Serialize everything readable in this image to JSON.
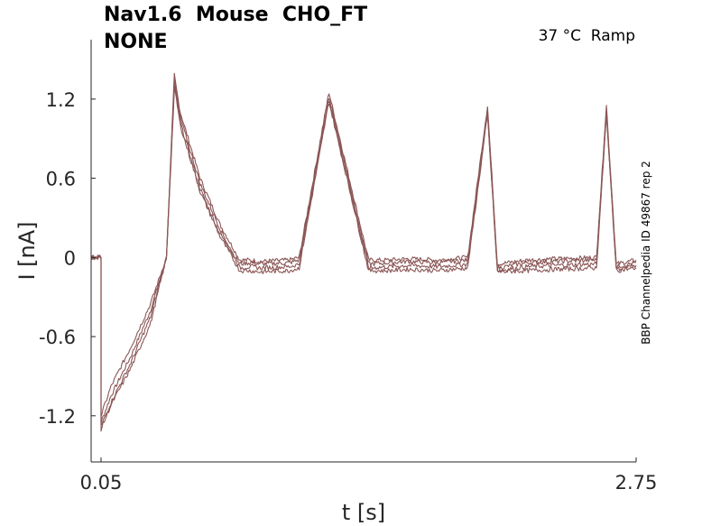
{
  "title": {
    "line1": "Nav1.6  Mouse  CHO_FT",
    "line2": "NONE"
  },
  "condition": "37 °C  Ramp",
  "side_label": "BBP Channelpedia ID 49867 rep 2",
  "colors": {
    "trace": "#8b5656",
    "axis": "#262626"
  },
  "chart_data": {
    "type": "line",
    "xlabel": "t [s]",
    "ylabel": "I [nA]",
    "x_ticks": [
      "0.05",
      "2.75"
    ],
    "y_ticks": [
      "1.2",
      "0.6",
      "0",
      "-0.6",
      "-1.2"
    ],
    "xlim": [
      0.0,
      2.75
    ],
    "ylim": [
      -1.55,
      1.65
    ],
    "grid": false,
    "series_count": 4,
    "series": [
      {
        "x": [
          0.0,
          0.05,
          0.05,
          0.1,
          0.2,
          0.3,
          0.38,
          0.42,
          0.43,
          0.45,
          0.55,
          0.65,
          0.75,
          0.8,
          0.85,
          1.0,
          1.05,
          1.2,
          1.4,
          1.5,
          1.6,
          1.75,
          1.9,
          2.0,
          2.05,
          2.2,
          2.35,
          2.55,
          2.6,
          2.65,
          2.75
        ],
        "y": [
          0.0,
          0.0,
          -1.25,
          -1.05,
          -0.75,
          -0.4,
          0.0,
          1.38,
          1.28,
          1.1,
          0.6,
          0.25,
          -0.02,
          -0.02,
          -0.03,
          -0.02,
          0.0,
          1.25,
          -0.02,
          -0.02,
          -0.01,
          -0.02,
          0.0,
          1.15,
          -0.05,
          -0.02,
          -0.01,
          0.0,
          1.15,
          -0.05,
          -0.02
        ]
      },
      {
        "x": [
          0.0,
          0.05,
          0.05,
          0.1,
          0.2,
          0.3,
          0.38,
          0.42,
          0.43,
          0.45,
          0.55,
          0.65,
          0.75,
          0.8,
          0.85,
          1.0,
          1.05,
          1.2,
          1.4,
          1.5,
          1.6,
          1.75,
          1.9,
          2.0,
          2.05,
          2.2,
          2.35,
          2.55,
          2.6,
          2.65,
          2.75
        ],
        "y": [
          0.0,
          0.0,
          -1.2,
          -0.98,
          -0.68,
          -0.35,
          0.0,
          1.3,
          1.22,
          1.02,
          0.52,
          0.18,
          -0.05,
          -0.04,
          -0.05,
          -0.04,
          -0.02,
          1.22,
          -0.05,
          -0.04,
          -0.03,
          -0.04,
          -0.02,
          1.12,
          -0.08,
          -0.04,
          -0.03,
          -0.02,
          1.12,
          -0.07,
          -0.04
        ]
      },
      {
        "x": [
          0.0,
          0.05,
          0.05,
          0.1,
          0.2,
          0.3,
          0.38,
          0.42,
          0.43,
          0.45,
          0.55,
          0.65,
          0.75,
          0.8,
          0.85,
          1.0,
          1.05,
          1.2,
          1.4,
          1.5,
          1.6,
          1.75,
          1.9,
          2.0,
          2.05,
          2.2,
          2.35,
          2.55,
          2.6,
          2.65,
          2.75
        ],
        "y": [
          0.0,
          0.0,
          -1.28,
          -1.1,
          -0.8,
          -0.45,
          0.0,
          1.34,
          1.25,
          1.06,
          0.56,
          0.22,
          -0.08,
          -0.07,
          -0.08,
          -0.07,
          -0.05,
          1.2,
          -0.08,
          -0.07,
          -0.06,
          -0.07,
          -0.05,
          1.1,
          -0.1,
          -0.07,
          -0.06,
          -0.05,
          1.1,
          -0.09,
          -0.06
        ]
      },
      {
        "x": [
          0.0,
          0.05,
          0.05,
          0.1,
          0.2,
          0.3,
          0.38,
          0.42,
          0.43,
          0.45,
          0.55,
          0.65,
          0.75,
          0.8,
          0.85,
          1.0,
          1.05,
          1.2,
          1.4,
          1.5,
          1.6,
          1.75,
          1.9,
          2.0,
          2.05,
          2.2,
          2.35,
          2.55,
          2.6,
          2.65,
          2.75
        ],
        "y": [
          0.0,
          0.0,
          -1.3,
          -1.12,
          -0.84,
          -0.5,
          0.0,
          1.27,
          1.2,
          1.0,
          0.5,
          0.16,
          -0.1,
          -0.1,
          -0.11,
          -0.1,
          -0.08,
          1.18,
          -0.1,
          -0.1,
          -0.09,
          -0.1,
          -0.08,
          1.08,
          -0.11,
          -0.1,
          -0.09,
          -0.08,
          1.08,
          -0.1,
          -0.08
        ]
      }
    ]
  }
}
